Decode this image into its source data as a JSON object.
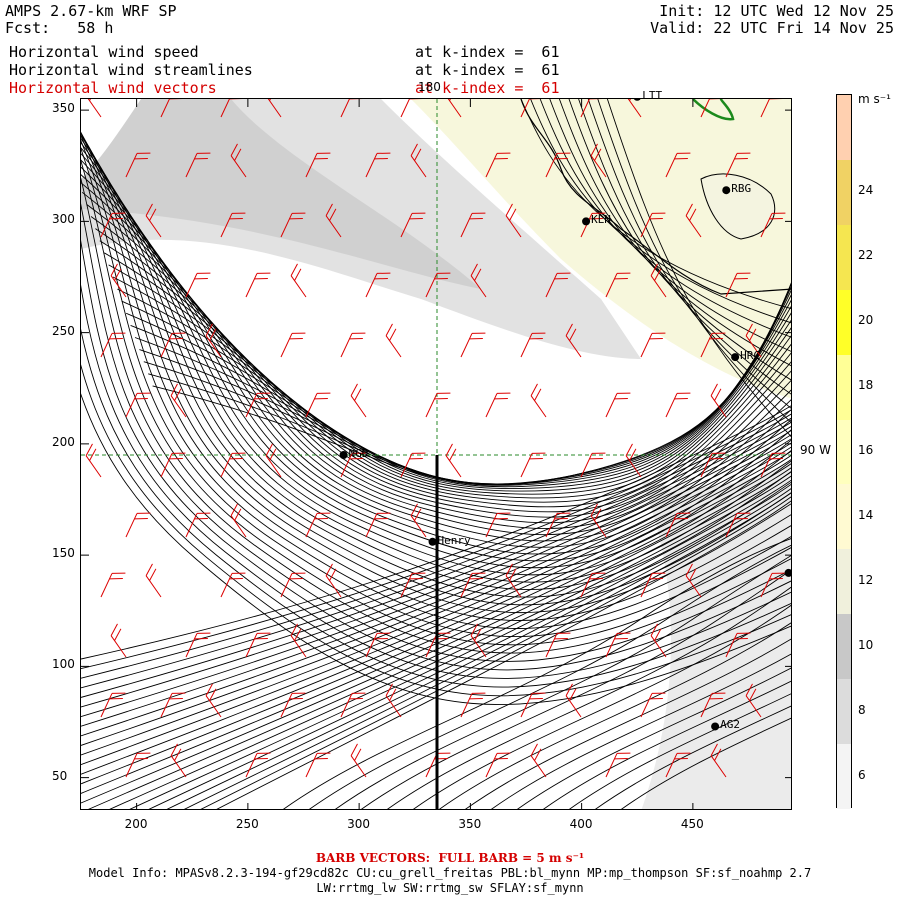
{
  "header": {
    "model": "AMPS 2.67-km WRF SP",
    "fcst": "Fcst:   58 h",
    "init": "Init: 12 UTC Wed 12 Nov 25",
    "valid": "Valid: 22 UTC Fri 14 Nov 25",
    "fields": [
      {
        "name": "Horizontal wind speed",
        "level": "at k-index =  61"
      },
      {
        "name": "Horizontal wind streamlines",
        "level": "at k-index =  61"
      },
      {
        "name": "Horizontal wind vectors",
        "level": "at k-index =  61"
      }
    ]
  },
  "axes": {
    "x_ticks": [
      "200",
      "250",
      "300",
      "350",
      "400",
      "450"
    ],
    "y_ticks": [
      "350",
      "300",
      "250",
      "200",
      "150",
      "100",
      "50"
    ],
    "x_range": [
      175,
      495
    ],
    "y_range": [
      35,
      355
    ]
  },
  "map": {
    "lon_line_label": "180",
    "lat_line_label": "90 W",
    "stations": [
      {
        "name": "NGD",
        "x": 293,
        "y": 195
      },
      {
        "name": "Henry",
        "x": 333,
        "y": 156
      },
      {
        "name": "KLN",
        "x": 402,
        "y": 300
      },
      {
        "name": "RBG",
        "x": 465,
        "y": 314
      },
      {
        "name": "HRC",
        "x": 469,
        "y": 239
      },
      {
        "name": "AG2",
        "x": 460,
        "y": 73
      },
      {
        "name": "LTT",
        "x": 425,
        "y": 356
      },
      {
        "name": "",
        "x": 493,
        "y": 142
      }
    ],
    "sounding_line": {
      "x": 335,
      "y_from": 195,
      "y_to": 35
    }
  },
  "colorbar": {
    "units": "m s⁻¹",
    "levels": [
      {
        "value": "6",
        "color": "#f4f4f4"
      },
      {
        "value": "8",
        "color": "#dcdcdc"
      },
      {
        "value": "10",
        "color": "#c8c8c8"
      },
      {
        "value": "12",
        "color": "#f0f0dc"
      },
      {
        "value": "14",
        "color": "#fffad2"
      },
      {
        "value": "16",
        "color": "#ffffbe"
      },
      {
        "value": "18",
        "color": "#ffff96"
      },
      {
        "value": "20",
        "color": "#ffff28"
      },
      {
        "value": "22",
        "color": "#f5e650"
      },
      {
        "value": "24",
        "color": "#f0d264"
      }
    ],
    "top_color": "#ffd0b0"
  },
  "footer": {
    "barb": "BARB VECTORS:  FULL BARB = 5 m s⁻¹",
    "model_info": "Model Info: MPASv8.2.3-194-gf29cd82c CU:cu_grell_freitas PBL:bl_mynn MP:mp_thompson SF:sf_noahmp 2.7",
    "model_info2": "LW:rrtmg_lw SW:rrtmg_sw SFLAY:sf_mynn"
  },
  "colors": {
    "streamline": "#000000",
    "barb": "#dd0000",
    "grid": "#2a8a2a",
    "coast": "#000000"
  }
}
